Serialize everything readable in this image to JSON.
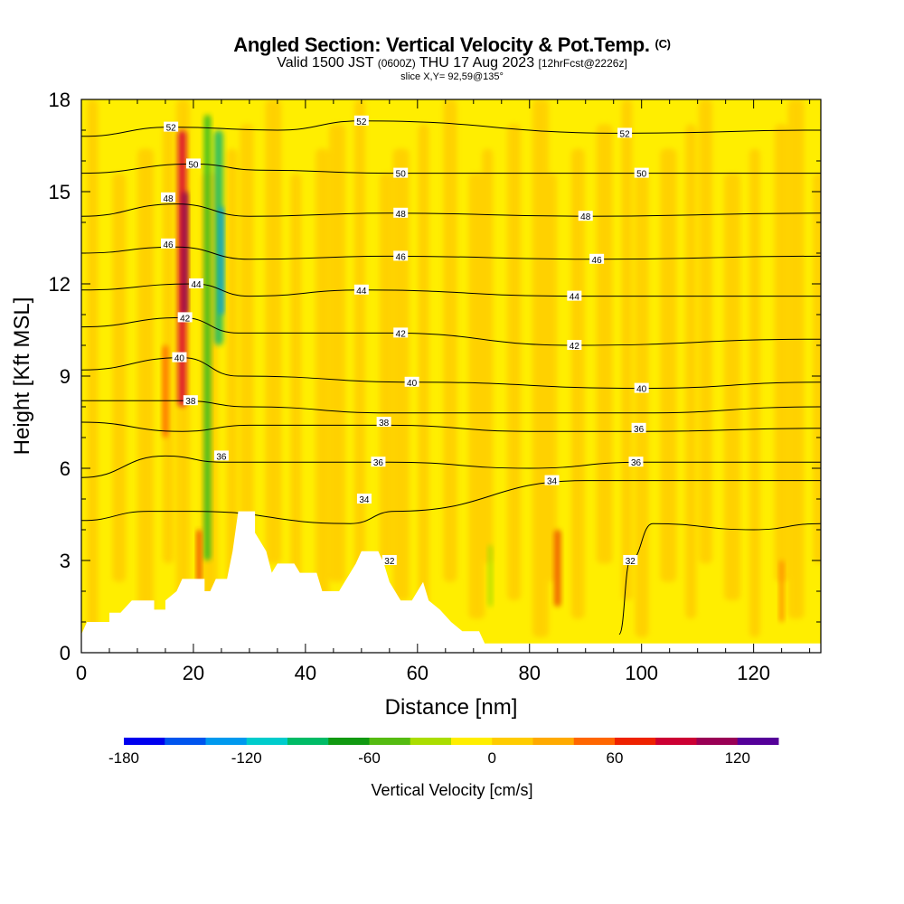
{
  "header": {
    "title": "Angled Section: Vertical Velocity & Pot.Temp.",
    "title_suffix": "(C)",
    "subtitle_pre": "Valid 1500 JST",
    "subtitle_utc": "(0600Z)",
    "subtitle_date": "THU 17 Aug 2023",
    "subtitle_fcst": "[12hrFcst@2226z]",
    "slice": "slice X,Y= 92,59@135°"
  },
  "chart_data": {
    "type": "heatmap",
    "xlabel": "Distance [nm]",
    "ylabel": "Height [Kft MSL]",
    "xlim": [
      0,
      132
    ],
    "ylim": [
      0,
      18
    ],
    "x_ticks": [
      0,
      20,
      40,
      60,
      80,
      100,
      120
    ],
    "y_ticks": [
      0,
      3,
      6,
      9,
      12,
      15,
      18
    ],
    "background_color": "#ffee00",
    "terrain_profile": [
      [
        0,
        0.6
      ],
      [
        1,
        1.0
      ],
      [
        5,
        1.0
      ],
      [
        5,
        1.3
      ],
      [
        7,
        1.3
      ],
      [
        9,
        1.7
      ],
      [
        13,
        1.7
      ],
      [
        13,
        1.4
      ],
      [
        15,
        1.4
      ],
      [
        15,
        1.7
      ],
      [
        17,
        2.0
      ],
      [
        18,
        2.4
      ],
      [
        22,
        2.4
      ],
      [
        22,
        2.0
      ],
      [
        23,
        2.0
      ],
      [
        24,
        2.4
      ],
      [
        26,
        2.4
      ],
      [
        27,
        3.3
      ],
      [
        28,
        4.6
      ],
      [
        31,
        4.6
      ],
      [
        31,
        3.9
      ],
      [
        33,
        3.3
      ],
      [
        34,
        2.6
      ],
      [
        35,
        2.9
      ],
      [
        38,
        2.9
      ],
      [
        39,
        2.6
      ],
      [
        42,
        2.6
      ],
      [
        43,
        2.0
      ],
      [
        46,
        2.0
      ],
      [
        47,
        2.3
      ],
      [
        49,
        2.9
      ],
      [
        50,
        3.3
      ],
      [
        53,
        3.3
      ],
      [
        54,
        2.9
      ],
      [
        55,
        2.3
      ],
      [
        57,
        1.7
      ],
      [
        59,
        1.7
      ],
      [
        60,
        2.0
      ],
      [
        61,
        2.3
      ],
      [
        62,
        1.7
      ],
      [
        64,
        1.4
      ],
      [
        66,
        1.0
      ],
      [
        68,
        0.7
      ],
      [
        71,
        0.7
      ],
      [
        72,
        0.3
      ],
      [
        132,
        0.3
      ]
    ],
    "theta_contours": [
      {
        "label": "32",
        "pts": [
          [
            96,
            0.6
          ],
          [
            98,
            3.0
          ],
          [
            102,
            4.2
          ],
          [
            120,
            4.0
          ],
          [
            132,
            4.2
          ]
        ]
      },
      {
        "label": "34",
        "pts": [
          [
            0,
            4.3
          ],
          [
            12,
            4.6
          ],
          [
            20,
            4.6
          ],
          [
            48,
            4.2
          ],
          [
            56,
            4.6
          ],
          [
            90,
            5.6
          ],
          [
            132,
            5.6
          ]
        ]
      },
      {
        "label": "36",
        "pts": [
          [
            0,
            5.7
          ],
          [
            15,
            6.4
          ],
          [
            25,
            6.2
          ],
          [
            55,
            6.2
          ],
          [
            80,
            6.0
          ],
          [
            100,
            6.2
          ],
          [
            132,
            6.2
          ]
        ]
      },
      {
        "label": "36",
        "pts": [
          [
            0,
            7.5
          ],
          [
            18,
            7.2
          ],
          [
            30,
            7.4
          ],
          [
            55,
            7.4
          ],
          [
            80,
            7.2
          ],
          [
            100,
            7.2
          ],
          [
            132,
            7.3
          ]
        ]
      },
      {
        "label": "38",
        "pts": [
          [
            0,
            8.2
          ],
          [
            18,
            8.2
          ],
          [
            30,
            8.0
          ],
          [
            55,
            7.8
          ],
          [
            100,
            7.8
          ],
          [
            132,
            8.0
          ]
        ]
      },
      {
        "label": "40",
        "pts": [
          [
            0,
            9.2
          ],
          [
            18,
            9.6
          ],
          [
            28,
            9.0
          ],
          [
            60,
            8.8
          ],
          [
            100,
            8.6
          ],
          [
            132,
            8.8
          ]
        ]
      },
      {
        "label": "42",
        "pts": [
          [
            0,
            10.6
          ],
          [
            18,
            10.9
          ],
          [
            28,
            10.4
          ],
          [
            55,
            10.4
          ],
          [
            88,
            10.0
          ],
          [
            132,
            10.2
          ]
        ]
      },
      {
        "label": "44",
        "pts": [
          [
            0,
            11.8
          ],
          [
            20,
            12.0
          ],
          [
            30,
            11.6
          ],
          [
            50,
            11.8
          ],
          [
            88,
            11.6
          ],
          [
            132,
            11.6
          ]
        ]
      },
      {
        "label": "46",
        "pts": [
          [
            0,
            13.0
          ],
          [
            17,
            13.2
          ],
          [
            30,
            12.8
          ],
          [
            55,
            12.9
          ],
          [
            92,
            12.8
          ],
          [
            132,
            12.9
          ]
        ]
      },
      {
        "label": "48",
        "pts": [
          [
            0,
            14.2
          ],
          [
            17,
            14.6
          ],
          [
            30,
            14.2
          ],
          [
            55,
            14.3
          ],
          [
            90,
            14.2
          ],
          [
            132,
            14.3
          ]
        ]
      },
      {
        "label": "50",
        "pts": [
          [
            0,
            15.6
          ],
          [
            20,
            15.9
          ],
          [
            32,
            15.7
          ],
          [
            55,
            15.6
          ],
          [
            100,
            15.6
          ],
          [
            132,
            15.6
          ]
        ]
      },
      {
        "label": "52",
        "pts": [
          [
            0,
            16.8
          ],
          [
            16,
            17.1
          ],
          [
            35,
            17.0
          ],
          [
            50,
            17.3
          ],
          [
            97,
            16.9
          ],
          [
            132,
            17.0
          ]
        ]
      }
    ],
    "contour_labels": [
      {
        "label": "52",
        "x": 16,
        "y": 17.1
      },
      {
        "label": "52",
        "x": 50,
        "y": 17.3
      },
      {
        "label": "52",
        "x": 97,
        "y": 16.9
      },
      {
        "label": "50",
        "x": 20,
        "y": 15.9
      },
      {
        "label": "50",
        "x": 57,
        "y": 15.6
      },
      {
        "label": "50",
        "x": 100,
        "y": 15.6
      },
      {
        "label": "48",
        "x": 15.5,
        "y": 14.8
      },
      {
        "label": "48",
        "x": 57,
        "y": 14.3
      },
      {
        "label": "48",
        "x": 90,
        "y": 14.2
      },
      {
        "label": "46",
        "x": 15.5,
        "y": 13.3
      },
      {
        "label": "46",
        "x": 57,
        "y": 12.9
      },
      {
        "label": "46",
        "x": 92,
        "y": 12.8
      },
      {
        "label": "44",
        "x": 20.5,
        "y": 12.0
      },
      {
        "label": "44",
        "x": 50,
        "y": 11.8
      },
      {
        "label": "44",
        "x": 88,
        "y": 11.6
      },
      {
        "label": "42",
        "x": 18.5,
        "y": 10.9
      },
      {
        "label": "42",
        "x": 57,
        "y": 10.4
      },
      {
        "label": "42",
        "x": 88,
        "y": 10.0
      },
      {
        "label": "40",
        "x": 17.5,
        "y": 9.6
      },
      {
        "label": "40",
        "x": 59,
        "y": 8.8
      },
      {
        "label": "40",
        "x": 100,
        "y": 8.6
      },
      {
        "label": "38",
        "x": 19.5,
        "y": 8.2
      },
      {
        "label": "38",
        "x": 54,
        "y": 7.5
      },
      {
        "label": "36",
        "x": 99.5,
        "y": 7.3
      },
      {
        "label": "36",
        "x": 25,
        "y": 6.4
      },
      {
        "label": "36",
        "x": 53,
        "y": 6.2
      },
      {
        "label": "36",
        "x": 99,
        "y": 6.2
      },
      {
        "label": "34",
        "x": 84,
        "y": 5.6
      },
      {
        "label": "34",
        "x": 50.5,
        "y": 5.0
      },
      {
        "label": "32",
        "x": 55,
        "y": 3.0
      },
      {
        "label": "32",
        "x": 98,
        "y": 3.0
      }
    ],
    "velocity_features": [
      {
        "x": 18,
        "y0": 8,
        "y1": 17,
        "w": 1.5,
        "color": "#dd1030"
      },
      {
        "x": 18.5,
        "y0": 11,
        "y1": 15,
        "w": 1.0,
        "color": "#880055"
      },
      {
        "x": 15,
        "y0": 7,
        "y1": 10,
        "w": 1.0,
        "color": "#ff6600"
      },
      {
        "x": 22.5,
        "y0": 3,
        "y1": 17.5,
        "w": 1.2,
        "color": "#33bb22"
      },
      {
        "x": 24.5,
        "y0": 10,
        "y1": 17,
        "w": 1.6,
        "color": "#22bb66"
      },
      {
        "x": 25,
        "y0": 11,
        "y1": 14.5,
        "w": 0.8,
        "color": "#0099ee"
      },
      {
        "x": 21,
        "y0": 2.3,
        "y1": 4,
        "w": 0.8,
        "color": "#ee3300"
      },
      {
        "x": 85,
        "y0": 1.5,
        "y1": 4,
        "w": 1.2,
        "color": "#ee5500"
      },
      {
        "x": 73,
        "y0": 1.5,
        "y1": 3.5,
        "w": 0.8,
        "color": "#aadd00"
      },
      {
        "x": 125,
        "y0": 1.0,
        "y1": 3,
        "w": 0.8,
        "color": "#ff8800"
      }
    ],
    "colorbar": {
      "title": "Vertical Velocity [cm/s]",
      "range": [
        -180,
        140
      ],
      "step": 20,
      "tick_values": [
        -180,
        -120,
        -60,
        0,
        60,
        120
      ],
      "tick_labels": [
        "-180",
        "-120",
        "-60",
        "0",
        "60",
        "120"
      ],
      "colors": [
        "#0000ee",
        "#0055ee",
        "#0099ee",
        "#00cccc",
        "#00bb66",
        "#119911",
        "#55bb11",
        "#aadd00",
        "#ffee00",
        "#ffcc00",
        "#ffaa00",
        "#ff6600",
        "#ee2200",
        "#cc0033",
        "#990055",
        "#550099"
      ]
    }
  }
}
